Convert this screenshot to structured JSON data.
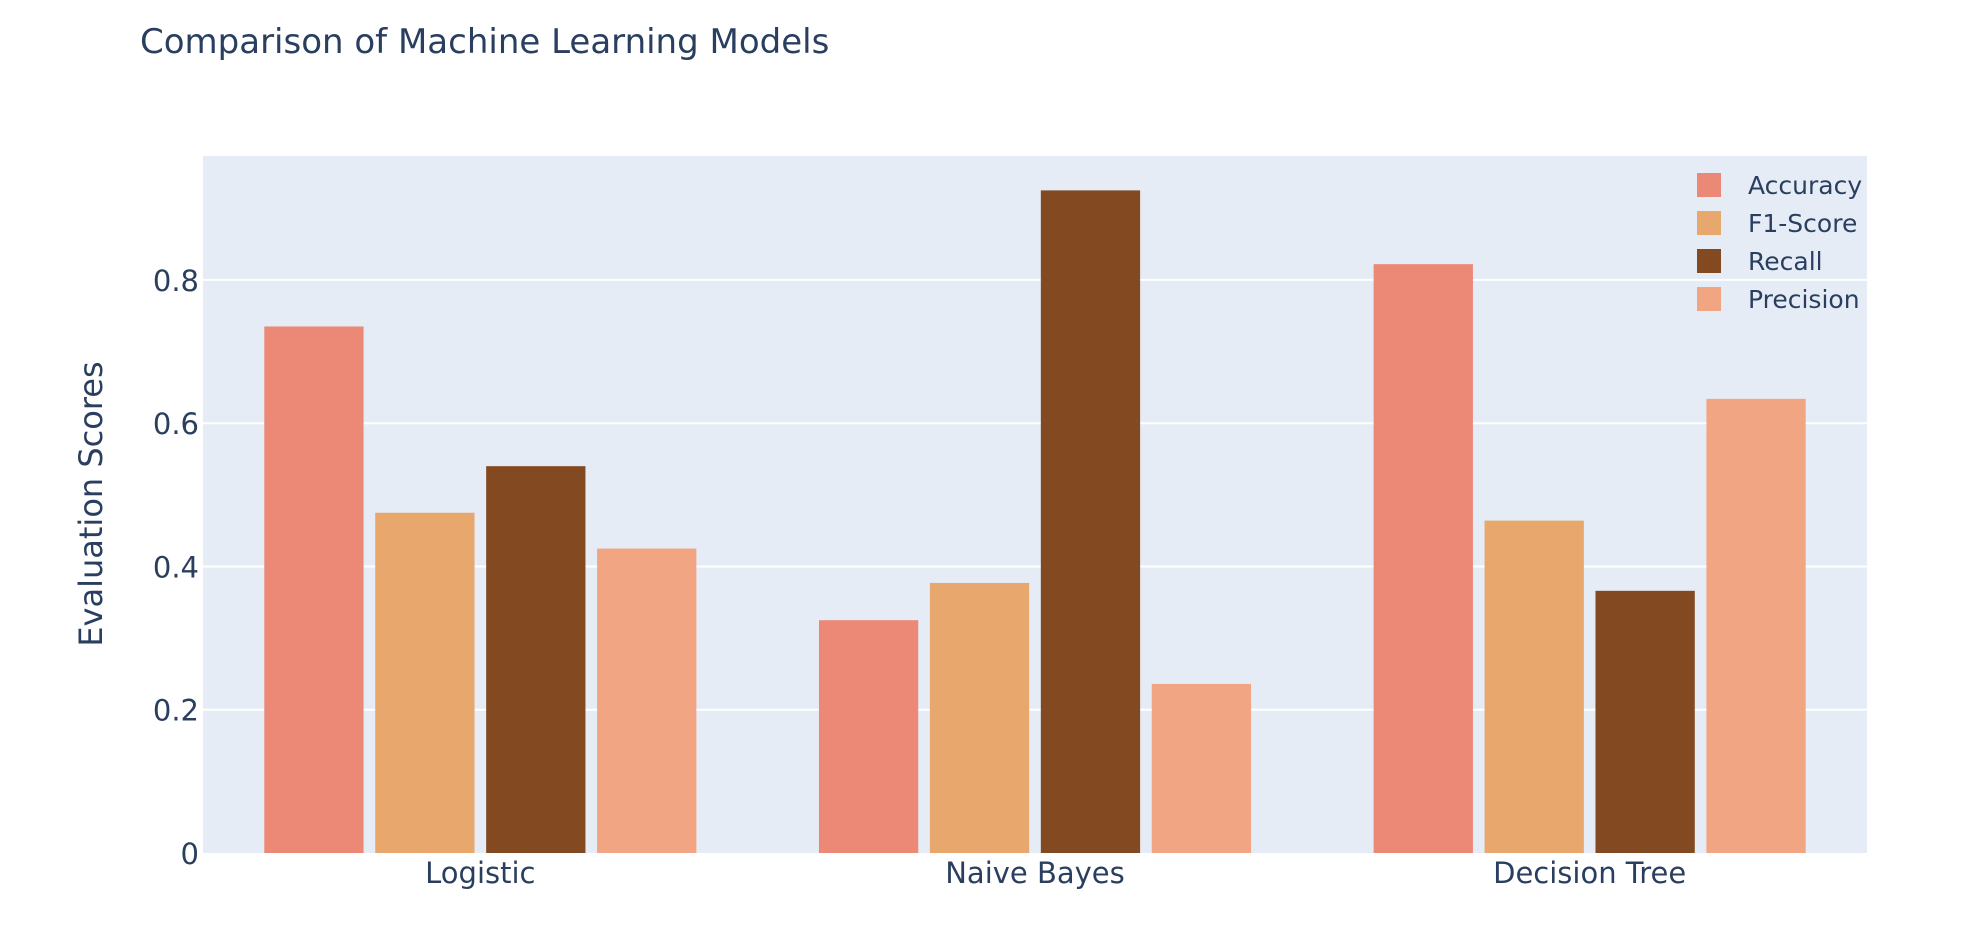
{
  "chart_data": {
    "type": "bar",
    "title": "Comparison of Machine Learning Models",
    "xlabel": "",
    "ylabel": "Evaluation Scores",
    "categories": [
      "Logistic",
      "Naive Bayes",
      "Decision Tree"
    ],
    "series": [
      {
        "name": "Accuracy",
        "values": [
          0.735,
          0.325,
          0.822
        ],
        "color": "#ec8876"
      },
      {
        "name": "F1-Score",
        "values": [
          0.475,
          0.377,
          0.464
        ],
        "color": "#e8a76c"
      },
      {
        "name": "Recall",
        "values": [
          0.54,
          0.925,
          0.366
        ],
        "color": "#834920"
      },
      {
        "name": "Precision",
        "values": [
          0.425,
          0.236,
          0.634
        ],
        "color": "#f2a582"
      }
    ],
    "ylim": [
      0,
      0.973
    ],
    "yticks": [
      0,
      0.2,
      0.4,
      0.6,
      0.8
    ],
    "ytick_labels": [
      "0",
      "0.2",
      "0.4",
      "0.6",
      "0.8"
    ],
    "grid": true,
    "legend_position": "top-right",
    "plot_background": "#e5ecf6",
    "gridline_color": "#ffffff"
  }
}
